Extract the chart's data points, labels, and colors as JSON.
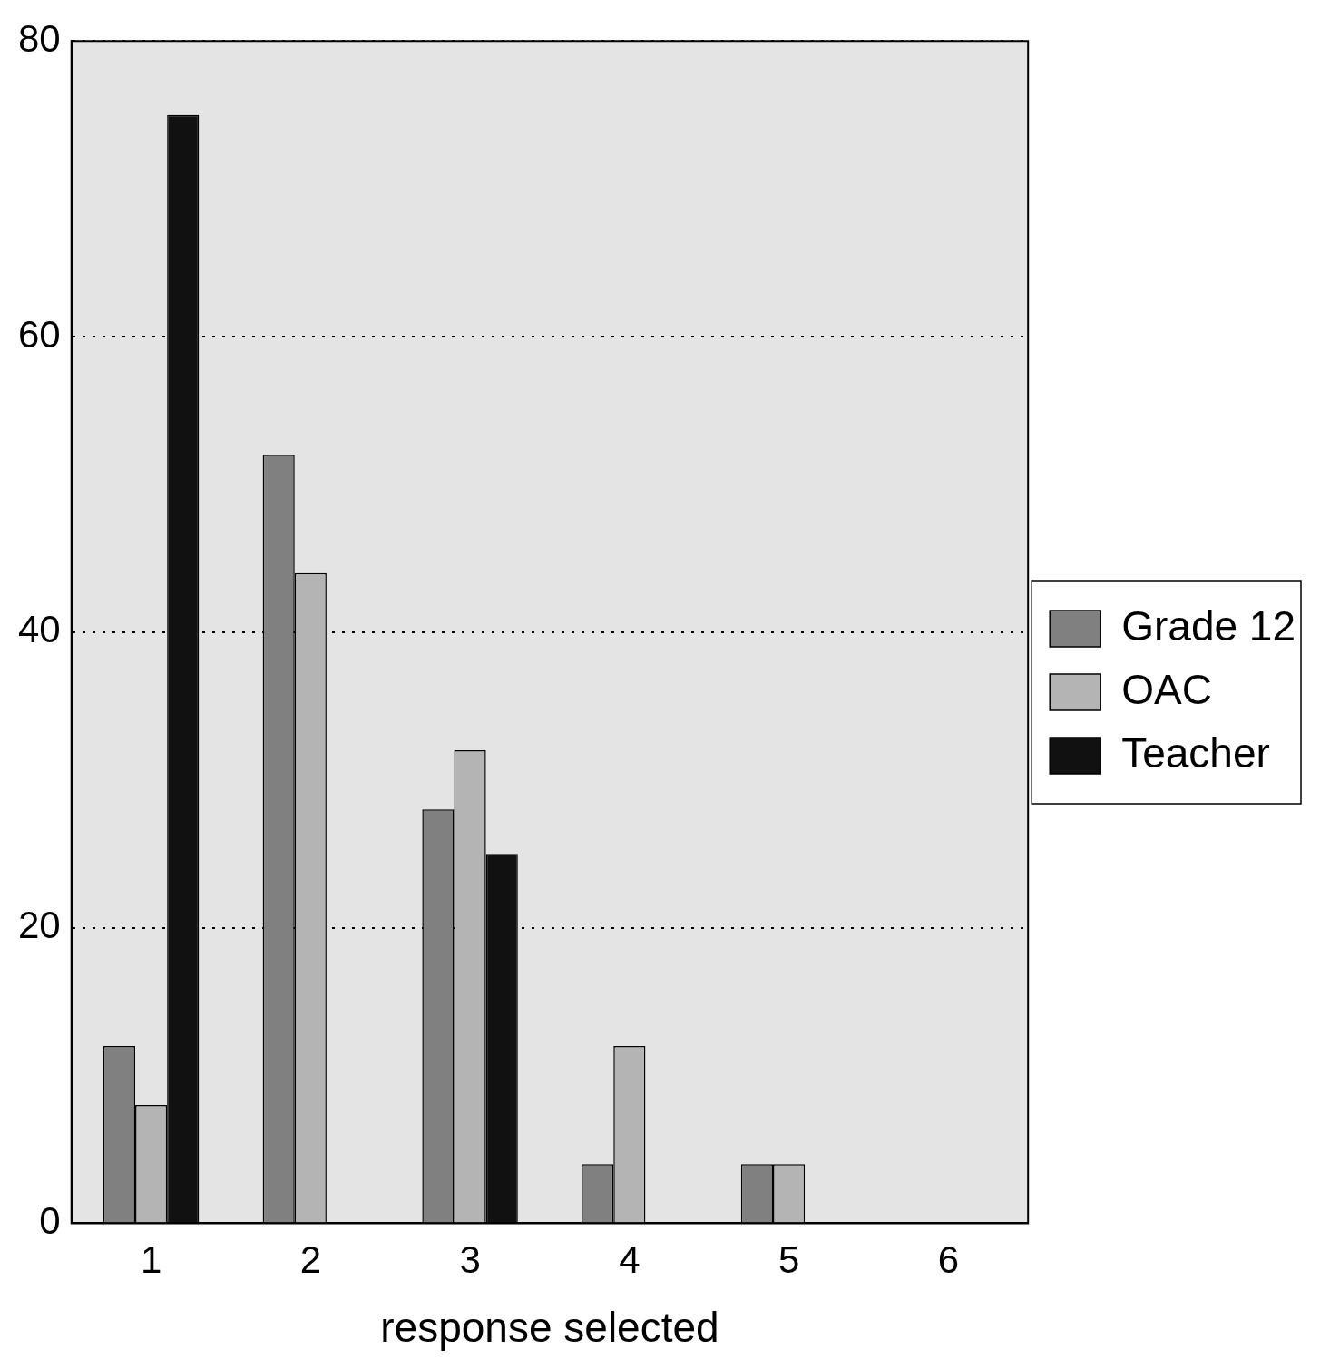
{
  "chart_data": {
    "type": "bar",
    "xlabel": "response selected",
    "categories": [
      "1",
      "2",
      "3",
      "4",
      "5",
      "6"
    ],
    "series": [
      {
        "name": "Grade 12",
        "color": "#808080",
        "values": [
          12,
          52,
          28,
          4,
          4,
          0
        ]
      },
      {
        "name": "OAC",
        "color": "#b4b4b4",
        "values": [
          8,
          44,
          32,
          12,
          4,
          0
        ]
      },
      {
        "name": "Teacher",
        "color": "#111111",
        "values": [
          75,
          0,
          25,
          0,
          0,
          0
        ]
      }
    ],
    "ylim": [
      0,
      80
    ],
    "yticks": [
      0,
      20,
      40,
      60,
      80
    ],
    "grid": "y",
    "line_style": "dotted",
    "legend": "right"
  }
}
